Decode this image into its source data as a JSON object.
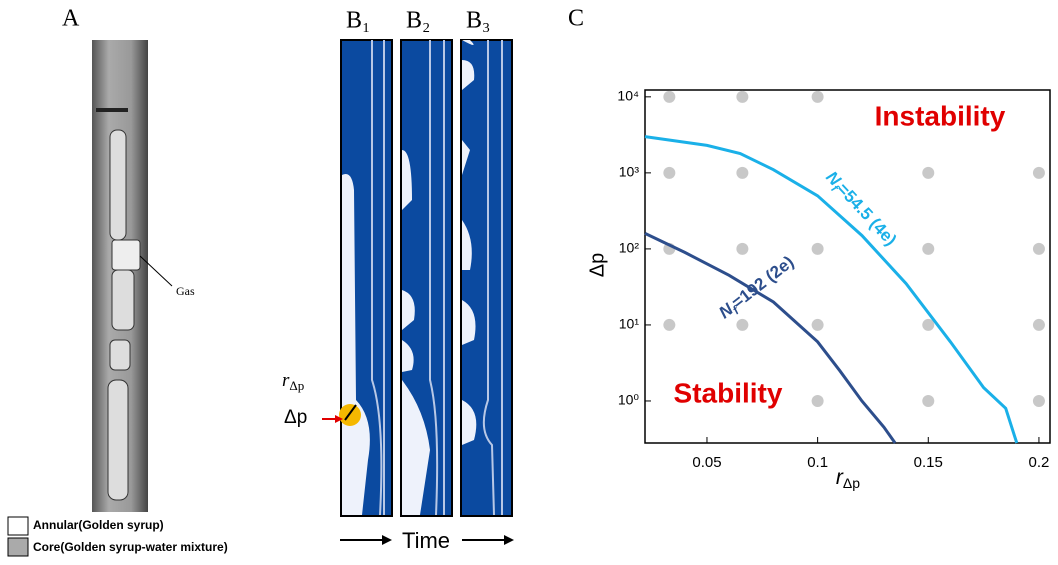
{
  "panels": {
    "A": {
      "label": "A",
      "annotation": "Gas"
    },
    "B": {
      "labels": [
        "B₁",
        "B₂",
        "B₃"
      ],
      "r_label": [
        "r",
        "Δp"
      ],
      "dp_label": "Δp",
      "time_label": "Time"
    },
    "C": {
      "label": "C"
    }
  },
  "legend": [
    "Annular(Golden syrup)",
    "Core(Golden syrup-water mixture)"
  ],
  "chart_data": {
    "type": "line",
    "xlabel": [
      "r",
      "Δp"
    ],
    "ylabel": "Δp",
    "xlim": [
      0.022,
      0.205
    ],
    "ylim": [
      0.28,
      12300
    ],
    "yscale": "log",
    "xticks": [
      0.05,
      0.1,
      0.15,
      0.2
    ],
    "yticks": [
      {
        "value": 1,
        "label": "10⁰"
      },
      {
        "value": 10,
        "label": "10¹"
      },
      {
        "value": 100,
        "label": "10²"
      },
      {
        "value": 1000,
        "label": "10³"
      },
      {
        "value": 10000,
        "label": "10⁴"
      }
    ],
    "series": [
      {
        "label": [
          "N",
          "f",
          "=54.5 (4e)"
        ],
        "color": "#1ab0e8",
        "x": [
          0.022,
          0.05,
          0.065,
          0.08,
          0.1,
          0.12,
          0.14,
          0.16,
          0.175,
          0.185,
          0.19
        ],
        "values": [
          3000,
          2300,
          1800,
          1100,
          500,
          150,
          35,
          6,
          1.5,
          0.8,
          0.28
        ]
      },
      {
        "label": [
          "N",
          "f",
          "=192 (2e)"
        ],
        "color": "#2d4e8c",
        "x": [
          0.022,
          0.04,
          0.06,
          0.08,
          0.1,
          0.11,
          0.12,
          0.13,
          0.135
        ],
        "values": [
          160,
          90,
          45,
          20,
          6,
          2.5,
          1,
          0.45,
          0.28
        ]
      }
    ],
    "points": {
      "color": "#c8c8c8",
      "x": [
        0.033,
        0.066,
        0.1,
        0.033,
        0.066,
        0.15,
        0.2,
        0.033,
        0.066,
        0.1,
        0.15,
        0.2,
        0.033,
        0.066,
        0.1,
        0.15,
        0.2,
        0.1,
        0.15,
        0.2
      ],
      "values": [
        10000,
        10000,
        10000,
        1000,
        1000,
        1000,
        1000,
        100,
        100,
        100,
        100,
        100,
        10,
        10,
        10,
        10,
        10,
        1,
        1,
        1
      ]
    },
    "annotations": [
      {
        "text": "Instability",
        "color": "#e00000"
      },
      {
        "text": "Stability",
        "color": "#e00000"
      }
    ]
  }
}
